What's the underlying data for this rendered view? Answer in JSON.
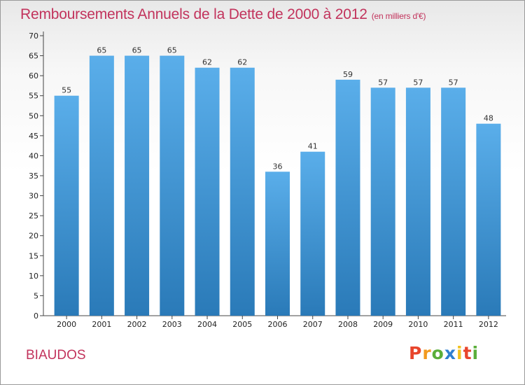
{
  "chart_data": {
    "type": "bar",
    "title": "Remboursements Annuels de la Dette de 2000 à 2012",
    "unit_note": "(en milliers d'€)",
    "categories": [
      "2000",
      "2001",
      "2002",
      "2003",
      "2004",
      "2005",
      "2006",
      "2007",
      "2008",
      "2009",
      "2010",
      "2011",
      "2012"
    ],
    "values": [
      55,
      65,
      65,
      65,
      62,
      62,
      36,
      41,
      59,
      57,
      57,
      57,
      48
    ],
    "ylim": [
      0,
      70
    ],
    "yticks": [
      0,
      5,
      10,
      15,
      20,
      25,
      30,
      35,
      40,
      45,
      50,
      55,
      60,
      65,
      70
    ],
    "grid": false,
    "bar_color_top": "#5aaeea",
    "bar_color_bottom": "#2a7ab8"
  },
  "commune": "BIAUDOS",
  "logo": {
    "letters": [
      "P",
      "r",
      "o",
      "x",
      "i",
      "t",
      "i"
    ],
    "colors": [
      "#e8452c",
      "#f29a1f",
      "#5aae3a",
      "#2f7fd0",
      "#f2c21f",
      "#e8452c",
      "#5aae3a"
    ]
  }
}
